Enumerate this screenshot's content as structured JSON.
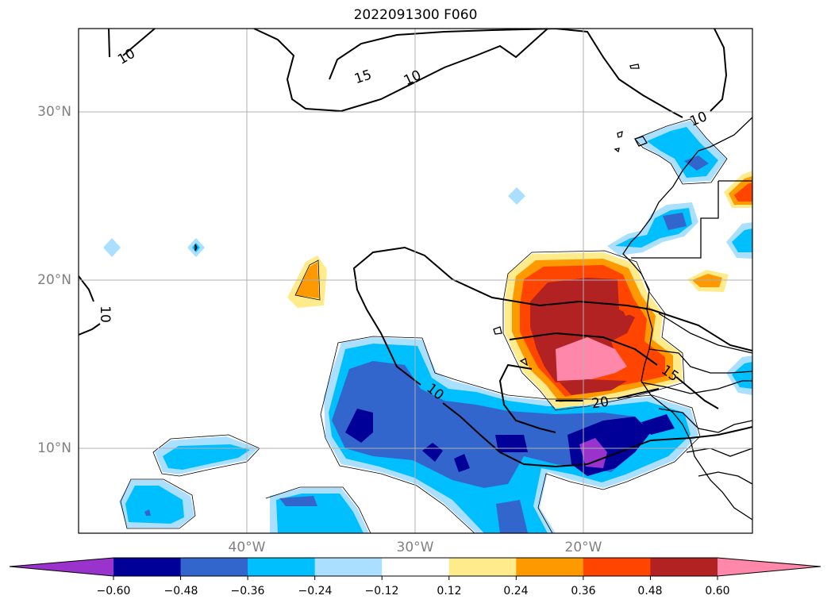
{
  "title": "2022091300 F060",
  "map": {
    "lat_labels": [
      "30°N",
      "20°N",
      "10°N"
    ],
    "lon_labels": [
      "40°W",
      "30°W",
      "20°W"
    ],
    "contour_labels": [
      "10",
      "15",
      "10",
      "10",
      "10",
      "10",
      "15",
      "20"
    ]
  },
  "colorbar": {
    "extend": "both",
    "ticks": [
      "−0.60",
      "−0.48",
      "−0.36",
      "−0.24",
      "−0.12",
      "0.12",
      "0.24",
      "0.36",
      "0.48",
      "0.60"
    ],
    "colors": {
      "under": "#9933cc",
      "bins": [
        "#000099",
        "#3366cc",
        "#00bfff",
        "#aadfff",
        "#ffffff",
        "#ffeb8c",
        "#ff9900",
        "#ff4500",
        "#b22222"
      ],
      "over": "#ff88aa"
    }
  }
}
